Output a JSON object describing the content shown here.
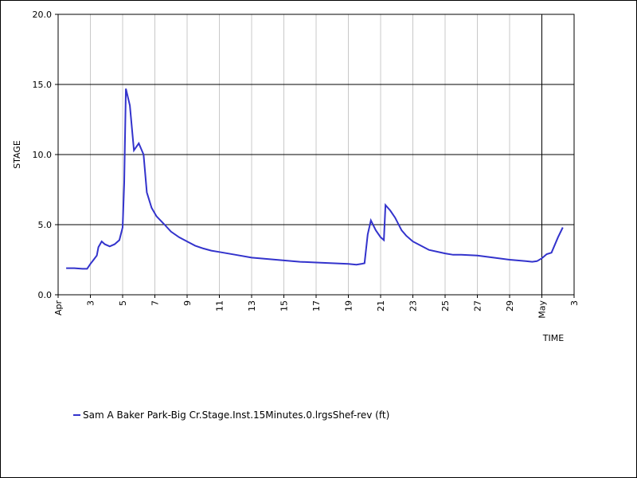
{
  "chart_data": {
    "type": "line",
    "xlabel": "TIME",
    "ylabel": "STAGE",
    "ylim": [
      0,
      20
    ],
    "y_ticks": [
      "0.0",
      "5.0",
      "10.0",
      "15.0",
      "20.0"
    ],
    "x_ticks": [
      {
        "day": 1,
        "label": "Apr"
      },
      {
        "day": 3,
        "label": "3"
      },
      {
        "day": 5,
        "label": "5"
      },
      {
        "day": 7,
        "label": "7"
      },
      {
        "day": 9,
        "label": "9"
      },
      {
        "day": 11,
        "label": "11"
      },
      {
        "day": 13,
        "label": "13"
      },
      {
        "day": 15,
        "label": "15"
      },
      {
        "day": 17,
        "label": "17"
      },
      {
        "day": 19,
        "label": "19"
      },
      {
        "day": 21,
        "label": "21"
      },
      {
        "day": 23,
        "label": "23"
      },
      {
        "day": 25,
        "label": "25"
      },
      {
        "day": 27,
        "label": "27"
      },
      {
        "day": 29,
        "label": "29"
      },
      {
        "day": 31,
        "label": "May"
      },
      {
        "day": 33,
        "label": "3"
      }
    ],
    "xlim": [
      1,
      33
    ],
    "marker_day": 31,
    "grid": true,
    "legend_position": "bottom-left",
    "series": [
      {
        "name": "Sam A Baker Park-Big Cr.Stage.Inst.15Minutes.0.lrgsShef-rev (ft)",
        "color": "#3333cc",
        "points": [
          [
            1.5,
            1.9
          ],
          [
            2.0,
            1.9
          ],
          [
            2.5,
            1.85
          ],
          [
            2.8,
            1.85
          ],
          [
            3.0,
            2.2
          ],
          [
            3.2,
            2.5
          ],
          [
            3.4,
            2.8
          ],
          [
            3.5,
            3.4
          ],
          [
            3.7,
            3.8
          ],
          [
            3.9,
            3.6
          ],
          [
            4.2,
            3.45
          ],
          [
            4.5,
            3.6
          ],
          [
            4.8,
            3.9
          ],
          [
            5.0,
            4.8
          ],
          [
            5.1,
            8.0
          ],
          [
            5.2,
            14.7
          ],
          [
            5.45,
            13.5
          ],
          [
            5.7,
            10.3
          ],
          [
            6.0,
            10.8
          ],
          [
            6.3,
            10.0
          ],
          [
            6.5,
            7.3
          ],
          [
            6.8,
            6.2
          ],
          [
            7.1,
            5.6
          ],
          [
            7.6,
            5.0
          ],
          [
            8.0,
            4.5
          ],
          [
            8.5,
            4.1
          ],
          [
            9.0,
            3.8
          ],
          [
            9.5,
            3.5
          ],
          [
            10.0,
            3.3
          ],
          [
            10.5,
            3.15
          ],
          [
            11.0,
            3.05
          ],
          [
            12.0,
            2.85
          ],
          [
            13.0,
            2.65
          ],
          [
            14.0,
            2.55
          ],
          [
            15.0,
            2.45
          ],
          [
            16.0,
            2.35
          ],
          [
            17.0,
            2.3
          ],
          [
            18.0,
            2.25
          ],
          [
            19.0,
            2.2
          ],
          [
            19.5,
            2.15
          ],
          [
            19.8,
            2.2
          ],
          [
            20.0,
            2.25
          ],
          [
            20.2,
            4.3
          ],
          [
            20.4,
            5.3
          ],
          [
            20.7,
            4.6
          ],
          [
            21.0,
            4.1
          ],
          [
            21.2,
            3.9
          ],
          [
            21.3,
            6.4
          ],
          [
            21.6,
            6.0
          ],
          [
            21.9,
            5.5
          ],
          [
            22.3,
            4.6
          ],
          [
            22.6,
            4.2
          ],
          [
            23.0,
            3.8
          ],
          [
            23.5,
            3.5
          ],
          [
            24.0,
            3.2
          ],
          [
            25.0,
            2.95
          ],
          [
            25.5,
            2.85
          ],
          [
            26.0,
            2.85
          ],
          [
            27.0,
            2.8
          ],
          [
            28.0,
            2.65
          ],
          [
            29.0,
            2.5
          ],
          [
            30.0,
            2.4
          ],
          [
            30.4,
            2.35
          ],
          [
            30.7,
            2.4
          ],
          [
            31.0,
            2.6
          ],
          [
            31.3,
            2.9
          ],
          [
            31.6,
            3.0
          ],
          [
            32.0,
            4.1
          ],
          [
            32.3,
            4.8
          ]
        ]
      }
    ]
  }
}
